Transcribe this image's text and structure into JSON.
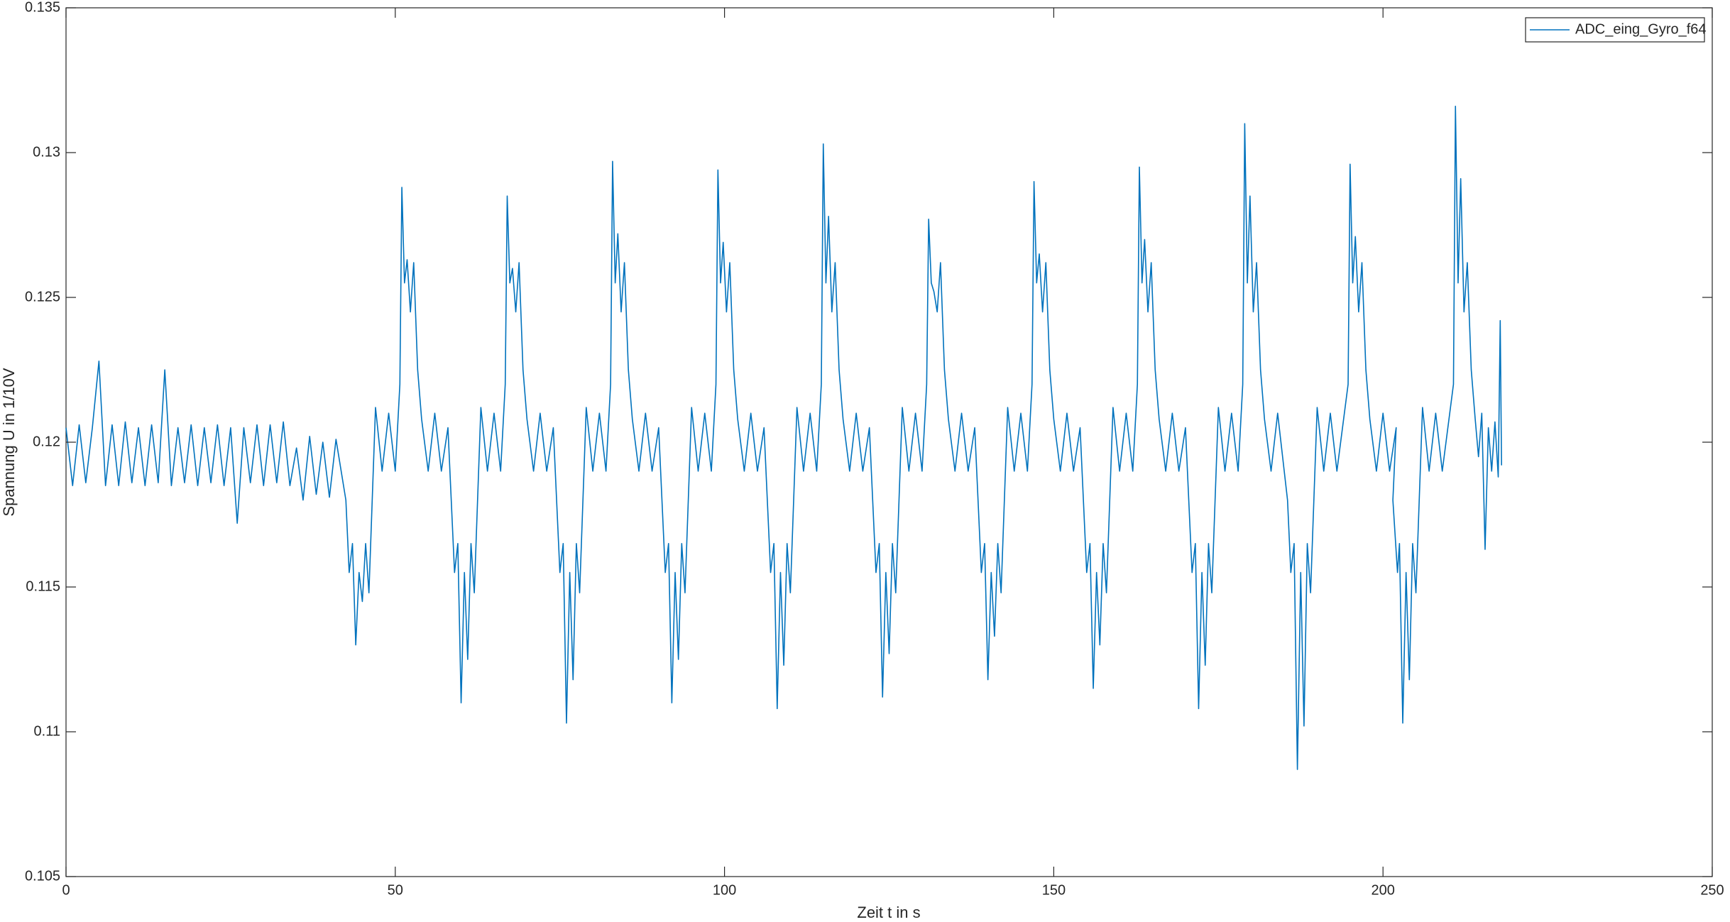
{
  "chart_data": {
    "type": "line",
    "xlabel": "Zeit t in s",
    "ylabel": "Spannung U in 1/10V",
    "xlim": [
      0,
      250
    ],
    "xticks": [
      0,
      50,
      100,
      150,
      200,
      250
    ],
    "ylim": [
      0.105,
      0.135
    ],
    "yticks": [
      0.105,
      0.11,
      0.115,
      0.12,
      0.125,
      0.13,
      0.135
    ],
    "grid": false,
    "legend": "northeast",
    "x": [
      0,
      1,
      2,
      3,
      4,
      5,
      6,
      7,
      8,
      9,
      10,
      11,
      12,
      13,
      14,
      15,
      16,
      17,
      18,
      19,
      20,
      21,
      22,
      23,
      24,
      25,
      26,
      27,
      28,
      29,
      30,
      31,
      32,
      33,
      34,
      35,
      36,
      37,
      38,
      39,
      40,
      41,
      42.5,
      43,
      43.5,
      44,
      44.5,
      45,
      45.5,
      46,
      46.5,
      47,
      48,
      49,
      50,
      50.7,
      51,
      51.4,
      51.8,
      52.3,
      52.8,
      53.4,
      54,
      55,
      56,
      57,
      58,
      58.5,
      59,
      59.5,
      60,
      60.5,
      61,
      61.5,
      62,
      62.5,
      63,
      64,
      65,
      66,
      66.7,
      67,
      67.4,
      67.8,
      68.3,
      68.8,
      69.4,
      70,
      71,
      72,
      73,
      74,
      74.5,
      75,
      75.5,
      76,
      76.5,
      77,
      77.5,
      78,
      78.5,
      79,
      80,
      81,
      82,
      82.7,
      83,
      83.4,
      83.8,
      84.3,
      84.8,
      85.4,
      86,
      87,
      88,
      89,
      90,
      90.5,
      91,
      91.5,
      92,
      92.5,
      93,
      93.5,
      94,
      94.5,
      95,
      96,
      97,
      98,
      98.7,
      99,
      99.4,
      99.8,
      100.3,
      100.8,
      101.4,
      102,
      103,
      104,
      105,
      106,
      106.5,
      107,
      107.5,
      108,
      108.5,
      109,
      109.5,
      110,
      110.5,
      111,
      112,
      113,
      114,
      114.7,
      115,
      115.4,
      115.8,
      116.3,
      116.8,
      117.4,
      118,
      119,
      120,
      121,
      122,
      122.5,
      123,
      123.5,
      124,
      124.5,
      125,
      125.5,
      126,
      126.5,
      127,
      128,
      129,
      130,
      130.7,
      131,
      131.4,
      131.8,
      132.3,
      132.8,
      133.4,
      134,
      135,
      136,
      137,
      138,
      138.5,
      139,
      139.5,
      140,
      140.5,
      141,
      141.5,
      142,
      142.5,
      143,
      144,
      145,
      146,
      146.7,
      147,
      147.4,
      147.8,
      148.3,
      148.8,
      149.4,
      150,
      151,
      152,
      153,
      154,
      154.5,
      155,
      155.5,
      156,
      156.5,
      157,
      157.5,
      158,
      158.5,
      159,
      160,
      161,
      162,
      162.7,
      163,
      163.4,
      163.8,
      164.3,
      164.8,
      165.4,
      166,
      167,
      168,
      169,
      170,
      170.5,
      171,
      171.5,
      172,
      172.5,
      173,
      173.5,
      174,
      174.5,
      175,
      176,
      177,
      178,
      178.7,
      179,
      179.4,
      179.8,
      180.3,
      180.8,
      181.4,
      182,
      183,
      184,
      185,
      185.5,
      186,
      186.5,
      187,
      187.5,
      188,
      188.5,
      189,
      189.5,
      190,
      191,
      192,
      193,
      194.7,
      195,
      195.4,
      195.8,
      196.3,
      196.8,
      197.4,
      198,
      199,
      200,
      201,
      202,
      201.5,
      202.2,
      202.5,
      203,
      203.5,
      204,
      204.5,
      205,
      205.5,
      206,
      207,
      208,
      209,
      210.7,
      211,
      211.4,
      211.8,
      212.3,
      212.8,
      213.4,
      214,
      214.5,
      215,
      215.5,
      216,
      216.5,
      217,
      217.5,
      217.8,
      218
    ],
    "series": [
      {
        "name": "ADC_eing_Gyro_f64",
        "color": "#0072BD",
        "values": [
          0.1205,
          0.1185,
          0.1206,
          0.1186,
          0.1205,
          0.1228,
          0.1185,
          0.1206,
          0.1185,
          0.1207,
          0.1186,
          0.1205,
          0.1185,
          0.1206,
          0.1186,
          0.1225,
          0.1185,
          0.1205,
          0.1186,
          0.1206,
          0.1185,
          0.1205,
          0.1186,
          0.1206,
          0.1185,
          0.1205,
          0.1172,
          0.1205,
          0.1186,
          0.1206,
          0.1185,
          0.1206,
          0.1186,
          0.1207,
          0.1185,
          0.1198,
          0.118,
          0.1202,
          0.1182,
          0.12,
          0.1181,
          0.1201,
          0.118,
          0.1155,
          0.1165,
          0.113,
          0.1155,
          0.1145,
          0.1165,
          0.1148,
          0.118,
          0.1212,
          0.119,
          0.121,
          0.119,
          0.122,
          0.1288,
          0.1255,
          0.1263,
          0.1245,
          0.1262,
          0.1225,
          0.1208,
          0.119,
          0.121,
          0.119,
          0.1205,
          0.118,
          0.1155,
          0.1165,
          0.111,
          0.1155,
          0.1125,
          0.1165,
          0.1148,
          0.118,
          0.1212,
          0.119,
          0.121,
          0.119,
          0.122,
          0.1285,
          0.1255,
          0.126,
          0.1245,
          0.1262,
          0.1225,
          0.1208,
          0.119,
          0.121,
          0.119,
          0.1205,
          0.118,
          0.1155,
          0.1165,
          0.1103,
          0.1155,
          0.1118,
          0.1165,
          0.1148,
          0.118,
          0.1212,
          0.119,
          0.121,
          0.119,
          0.122,
          0.1297,
          0.1255,
          0.1272,
          0.1245,
          0.1262,
          0.1225,
          0.1208,
          0.119,
          0.121,
          0.119,
          0.1205,
          0.118,
          0.1155,
          0.1165,
          0.111,
          0.1155,
          0.1125,
          0.1165,
          0.1148,
          0.118,
          0.1212,
          0.119,
          0.121,
          0.119,
          0.122,
          0.1294,
          0.1255,
          0.1269,
          0.1245,
          0.1262,
          0.1225,
          0.1208,
          0.119,
          0.121,
          0.119,
          0.1205,
          0.118,
          0.1155,
          0.1165,
          0.1108,
          0.1155,
          0.1123,
          0.1165,
          0.1148,
          0.118,
          0.1212,
          0.119,
          0.121,
          0.119,
          0.122,
          0.1303,
          0.1255,
          0.1278,
          0.1245,
          0.1262,
          0.1225,
          0.1208,
          0.119,
          0.121,
          0.119,
          0.1205,
          0.118,
          0.1155,
          0.1165,
          0.1112,
          0.1155,
          0.1127,
          0.1165,
          0.1148,
          0.118,
          0.1212,
          0.119,
          0.121,
          0.119,
          0.122,
          0.1277,
          0.1255,
          0.1252,
          0.1245,
          0.1262,
          0.1225,
          0.1208,
          0.119,
          0.121,
          0.119,
          0.1205,
          0.118,
          0.1155,
          0.1165,
          0.1118,
          0.1155,
          0.1133,
          0.1165,
          0.1148,
          0.118,
          0.1212,
          0.119,
          0.121,
          0.119,
          0.122,
          0.129,
          0.1255,
          0.1265,
          0.1245,
          0.1262,
          0.1225,
          0.1208,
          0.119,
          0.121,
          0.119,
          0.1205,
          0.118,
          0.1155,
          0.1165,
          0.1115,
          0.1155,
          0.113,
          0.1165,
          0.1148,
          0.118,
          0.1212,
          0.119,
          0.121,
          0.119,
          0.122,
          0.1295,
          0.1255,
          0.127,
          0.1245,
          0.1262,
          0.1225,
          0.1208,
          0.119,
          0.121,
          0.119,
          0.1205,
          0.118,
          0.1155,
          0.1165,
          0.1108,
          0.1155,
          0.1123,
          0.1165,
          0.1148,
          0.118,
          0.1212,
          0.119,
          0.121,
          0.119,
          0.122,
          0.131,
          0.1255,
          0.1285,
          0.1245,
          0.1262,
          0.1225,
          0.1208,
          0.119,
          0.121,
          0.119,
          0.118,
          0.1155,
          0.1165,
          0.1087,
          0.1155,
          0.1102,
          0.1165,
          0.1148,
          0.118,
          0.1212,
          0.119,
          0.121,
          0.119,
          0.122,
          0.1296,
          0.1255,
          0.1271,
          0.1245,
          0.1262,
          0.1225,
          0.1208,
          0.119,
          0.121,
          0.119,
          0.1205,
          0.118,
          0.1155,
          0.1165,
          0.1103,
          0.1155,
          0.1118,
          0.1165,
          0.1148,
          0.118,
          0.1212,
          0.119,
          0.121,
          0.119,
          0.122,
          0.1316,
          0.1255,
          0.1291,
          0.1245,
          0.1262,
          0.1225,
          0.1208,
          0.1195,
          0.121,
          0.1163,
          0.1205,
          0.119,
          0.1207,
          0.1188,
          0.1242,
          0.1192
        ]
      }
    ]
  }
}
